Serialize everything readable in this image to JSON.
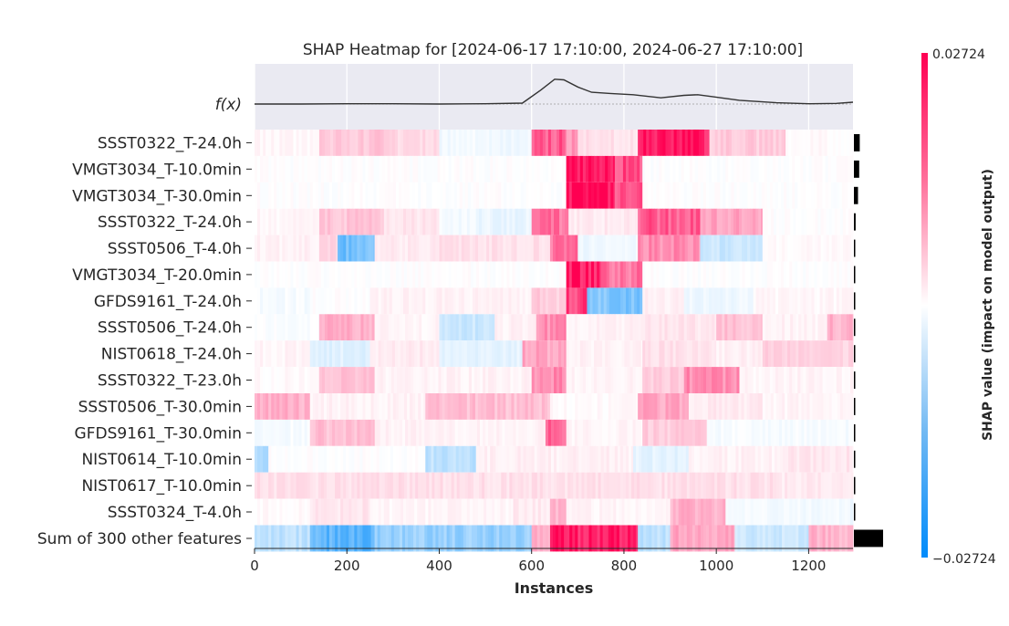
{
  "chart_data": {
    "type": "heatmap",
    "title": "SHAP Heatmap for [2024-06-17 17:10:00, 2024-06-27 17:10:00]",
    "xlabel": "Instances",
    "fx_label": "f(x)",
    "colorbar_label": "SHAP value (impact on model output)",
    "color_range": [
      -0.02724,
      0.02724
    ],
    "colorbar_ticks": [
      "0.02724",
      "−0.02724"
    ],
    "x_ticks": [
      0,
      200,
      400,
      600,
      800,
      1000,
      1200
    ],
    "xlim": [
      0,
      1296
    ],
    "colors": {
      "positive": "#ff0052",
      "negative": "#008bfb",
      "fx_panel": "#eaeaf2",
      "importance_bar": "#000000"
    },
    "fx_curve": [
      [
        0,
        0
      ],
      [
        100,
        0
      ],
      [
        200,
        0.01
      ],
      [
        300,
        0.01
      ],
      [
        400,
        0
      ],
      [
        500,
        0.01
      ],
      [
        580,
        0.03
      ],
      [
        620,
        0.45
      ],
      [
        650,
        0.8
      ],
      [
        670,
        0.78
      ],
      [
        700,
        0.55
      ],
      [
        730,
        0.38
      ],
      [
        770,
        0.34
      ],
      [
        820,
        0.3
      ],
      [
        880,
        0.2
      ],
      [
        930,
        0.28
      ],
      [
        960,
        0.3
      ],
      [
        990,
        0.24
      ],
      [
        1050,
        0.12
      ],
      [
        1130,
        0.04
      ],
      [
        1200,
        0.01
      ],
      [
        1260,
        0.02
      ],
      [
        1296,
        0.06
      ]
    ],
    "features": [
      {
        "name": "SSST0322_T-24.0h",
        "importance": 0.1,
        "segments": [
          [
            0,
            140,
            0.03
          ],
          [
            140,
            280,
            0.22
          ],
          [
            280,
            400,
            0.15
          ],
          [
            400,
            600,
            -0.05
          ],
          [
            600,
            675,
            0.65
          ],
          [
            675,
            700,
            0.4
          ],
          [
            700,
            830,
            0.12
          ],
          [
            830,
            985,
            0.92
          ],
          [
            985,
            1150,
            0.2
          ],
          [
            1150,
            1296,
            0.02
          ]
        ]
      },
      {
        "name": "VMGT3034_T-10.0min",
        "importance": 0.09,
        "segments": [
          [
            0,
            675,
            0.0
          ],
          [
            675,
            780,
            0.98
          ],
          [
            780,
            840,
            0.7
          ],
          [
            840,
            1296,
            0.0
          ]
        ]
      },
      {
        "name": "VMGT3034_T-30.0min",
        "importance": 0.07,
        "segments": [
          [
            0,
            675,
            0.0
          ],
          [
            675,
            780,
            0.98
          ],
          [
            780,
            840,
            0.7
          ],
          [
            840,
            1296,
            0.0
          ]
        ]
      },
      {
        "name": "SSST0322_T-24.0h",
        "importance": 0.03,
        "segments": [
          [
            0,
            140,
            0.03
          ],
          [
            140,
            280,
            0.22
          ],
          [
            280,
            400,
            0.1
          ],
          [
            400,
            480,
            -0.05
          ],
          [
            480,
            600,
            -0.08
          ],
          [
            600,
            680,
            0.55
          ],
          [
            680,
            830,
            0.08
          ],
          [
            830,
            965,
            0.65
          ],
          [
            965,
            1100,
            0.35
          ],
          [
            1100,
            1296,
            0.0
          ]
        ]
      },
      {
        "name": "SSST0506_T-4.0h",
        "importance": 0.02,
        "segments": [
          [
            0,
            140,
            0.05
          ],
          [
            140,
            180,
            0.15
          ],
          [
            180,
            260,
            -0.55
          ],
          [
            260,
            400,
            0.08
          ],
          [
            400,
            640,
            0.12
          ],
          [
            640,
            700,
            0.55
          ],
          [
            700,
            830,
            -0.06
          ],
          [
            830,
            965,
            0.45
          ],
          [
            965,
            1100,
            -0.2
          ],
          [
            1100,
            1296,
            0.02
          ]
        ]
      },
      {
        "name": "VMGT3034_T-20.0min",
        "importance": 0.015,
        "segments": [
          [
            0,
            675,
            0.0
          ],
          [
            675,
            750,
            0.92
          ],
          [
            750,
            840,
            0.55
          ],
          [
            840,
            1296,
            0.0
          ]
        ]
      },
      {
        "name": "GFDS9161_T-24.0h",
        "importance": 0.012,
        "segments": [
          [
            0,
            120,
            -0.03
          ],
          [
            120,
            250,
            0.0
          ],
          [
            250,
            600,
            0.05
          ],
          [
            600,
            675,
            0.2
          ],
          [
            675,
            720,
            0.75
          ],
          [
            720,
            840,
            -0.5
          ],
          [
            840,
            930,
            0.06
          ],
          [
            930,
            1080,
            -0.06
          ],
          [
            1080,
            1296,
            0.03
          ]
        ]
      },
      {
        "name": "SSST0506_T-24.0h",
        "importance": 0.01,
        "segments": [
          [
            0,
            140,
            -0.02
          ],
          [
            140,
            260,
            0.3
          ],
          [
            260,
            400,
            0.04
          ],
          [
            400,
            520,
            -0.2
          ],
          [
            520,
            610,
            0.05
          ],
          [
            610,
            675,
            0.45
          ],
          [
            675,
            840,
            0.05
          ],
          [
            840,
            1000,
            0.1
          ],
          [
            1000,
            1100,
            0.25
          ],
          [
            1100,
            1240,
            0.05
          ],
          [
            1240,
            1296,
            0.3
          ]
        ]
      },
      {
        "name": "NIST0618_T-24.0h",
        "importance": 0.008,
        "segments": [
          [
            0,
            120,
            0.04
          ],
          [
            120,
            250,
            -0.12
          ],
          [
            250,
            400,
            0.08
          ],
          [
            400,
            580,
            -0.1
          ],
          [
            580,
            675,
            0.35
          ],
          [
            675,
            840,
            0.05
          ],
          [
            840,
            1000,
            0.12
          ],
          [
            1000,
            1100,
            0.06
          ],
          [
            1100,
            1296,
            0.18
          ]
        ]
      },
      {
        "name": "SSST0322_T-23.0h",
        "importance": 0.006,
        "segments": [
          [
            0,
            140,
            0.02
          ],
          [
            140,
            260,
            0.25
          ],
          [
            260,
            600,
            0.05
          ],
          [
            600,
            675,
            0.45
          ],
          [
            675,
            840,
            0.04
          ],
          [
            840,
            930,
            0.2
          ],
          [
            930,
            1050,
            0.45
          ],
          [
            1050,
            1296,
            0.04
          ]
        ]
      },
      {
        "name": "SSST0506_T-30.0min",
        "importance": 0.005,
        "segments": [
          [
            0,
            120,
            0.3
          ],
          [
            120,
            370,
            0.05
          ],
          [
            370,
            640,
            0.25
          ],
          [
            640,
            830,
            0.02
          ],
          [
            830,
            940,
            0.35
          ],
          [
            940,
            1100,
            0.08
          ],
          [
            1100,
            1296,
            0.04
          ]
        ]
      },
      {
        "name": "GFDS9161_T-30.0min",
        "importance": 0.004,
        "segments": [
          [
            0,
            120,
            -0.03
          ],
          [
            120,
            260,
            0.25
          ],
          [
            260,
            630,
            0.05
          ],
          [
            630,
            675,
            0.65
          ],
          [
            675,
            840,
            0.04
          ],
          [
            840,
            980,
            0.2
          ],
          [
            980,
            1296,
            -0.03
          ]
        ]
      },
      {
        "name": "NIST0614_T-10.0min",
        "importance": 0.003,
        "segments": [
          [
            0,
            30,
            -0.3
          ],
          [
            30,
            370,
            0.0
          ],
          [
            370,
            480,
            -0.25
          ],
          [
            480,
            820,
            0.06
          ],
          [
            820,
            940,
            -0.1
          ],
          [
            940,
            1150,
            0.05
          ],
          [
            1150,
            1296,
            0.1
          ]
        ]
      },
      {
        "name": "NIST0617_T-10.0min",
        "importance": 0.002,
        "segments": [
          [
            0,
            1130,
            0.12
          ],
          [
            1130,
            1296,
            0.08
          ]
        ]
      },
      {
        "name": "SSST0324_T-4.0h",
        "importance": 0.002,
        "segments": [
          [
            0,
            120,
            0.02
          ],
          [
            120,
            250,
            0.1
          ],
          [
            250,
            560,
            0.04
          ],
          [
            560,
            640,
            0.08
          ],
          [
            640,
            675,
            0.3
          ],
          [
            675,
            900,
            0.04
          ],
          [
            900,
            1020,
            0.3
          ],
          [
            1020,
            1296,
            -0.05
          ]
        ]
      },
      {
        "name": "Sum of 300 other features",
        "importance": 0.5,
        "segments": [
          [
            0,
            120,
            -0.25
          ],
          [
            120,
            260,
            -0.65
          ],
          [
            260,
            600,
            -0.4
          ],
          [
            600,
            640,
            0.3
          ],
          [
            640,
            830,
            0.92
          ],
          [
            830,
            900,
            -0.25
          ],
          [
            900,
            1040,
            0.35
          ],
          [
            1040,
            1200,
            -0.2
          ],
          [
            1200,
            1296,
            0.3
          ]
        ]
      }
    ]
  }
}
